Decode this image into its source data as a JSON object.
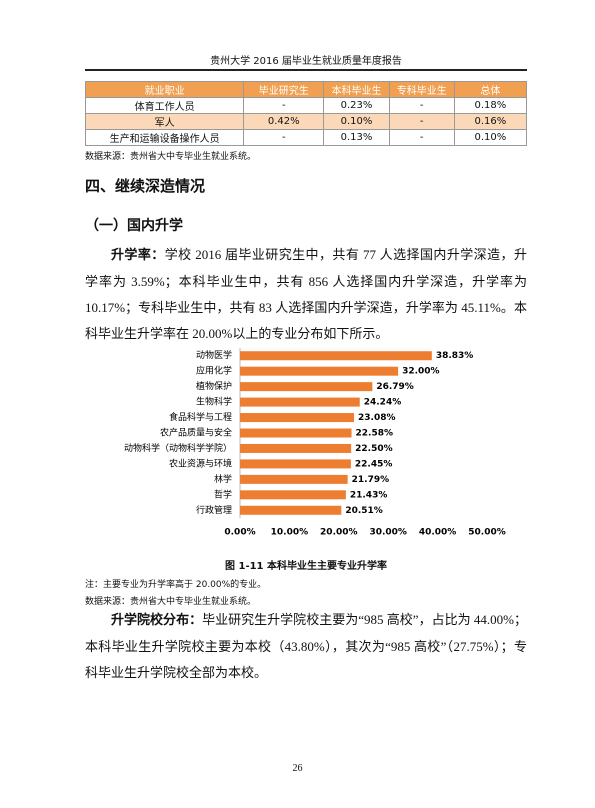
{
  "header": {
    "title": "贵州大学 2016 届毕业生就业质量年度报告"
  },
  "table": {
    "columns": [
      "就业职业",
      "毕业研究生",
      "本科毕业生",
      "专科毕业生",
      "总体"
    ],
    "rows": [
      [
        "体育工作人员",
        "-",
        "0.23%",
        "-",
        "0.18%"
      ],
      [
        "军人",
        "0.42%",
        "0.10%",
        "-",
        "0.16%"
      ],
      [
        "生产和运输设备操作人员",
        "-",
        "0.13%",
        "-",
        "0.10%"
      ]
    ],
    "note": "数据来源：贵州省大中专毕业生就业系统。"
  },
  "section_heading": "四、继续深造情况",
  "subsection_heading": "（一）国内升学",
  "paragraph1": {
    "lead": "升学率：",
    "text": "学校 2016 届毕业研究生中，共有 77 人选择国内升学深造，升学率为 3.59%；本科毕业生中，共有 856 人选择国内升学深造，升学率为 10.17%；专科毕业生中，共有 83 人选择国内升学深造，升学率为 45.11%。本科毕业生升学率在 20.00%以上的专业分布如下所示。"
  },
  "chart_data": {
    "type": "bar",
    "orientation": "horizontal",
    "title": "图 1-11 本科毕业生主要专业升学率",
    "categories": [
      "动物医学",
      "应用化学",
      "植物保护",
      "生物科学",
      "食品科学与工程",
      "农产品质量与安全",
      "动物科学（动物科学学院）",
      "农业资源与环境",
      "林学",
      "哲学",
      "行政管理"
    ],
    "values": [
      38.83,
      32.0,
      26.79,
      24.24,
      23.08,
      22.58,
      22.5,
      22.45,
      21.79,
      21.43,
      20.51
    ],
    "value_labels": [
      "38.83%",
      "32.00%",
      "26.79%",
      "24.24%",
      "23.08%",
      "22.58%",
      "22.50%",
      "22.45%",
      "21.79%",
      "21.43%",
      "20.51%"
    ],
    "color": "#ed7d31",
    "xlim": [
      0,
      50
    ],
    "xticks": [
      {
        "value": 0,
        "label": "0.00%"
      },
      {
        "value": 10,
        "label": "10.00%"
      },
      {
        "value": 20,
        "label": "20.00%"
      },
      {
        "value": 30,
        "label": "30.00%"
      },
      {
        "value": 40,
        "label": "40.00%"
      },
      {
        "value": 50,
        "label": "50.00%"
      }
    ]
  },
  "figure_notes": [
    "注：主要专业为升学率高于 20.00%的专业。",
    "数据来源：贵州省大中专毕业生就业系统。"
  ],
  "paragraph2": {
    "lead": "升学院校分布：",
    "text": "毕业研究生升学院校主要为“985 高校”，占比为 44.00%；本科毕业生升学院校主要为本校（43.80%），其次为“985 高校”（27.75%）；专科毕业生升学院校全部为本校。"
  },
  "page_number": "26"
}
